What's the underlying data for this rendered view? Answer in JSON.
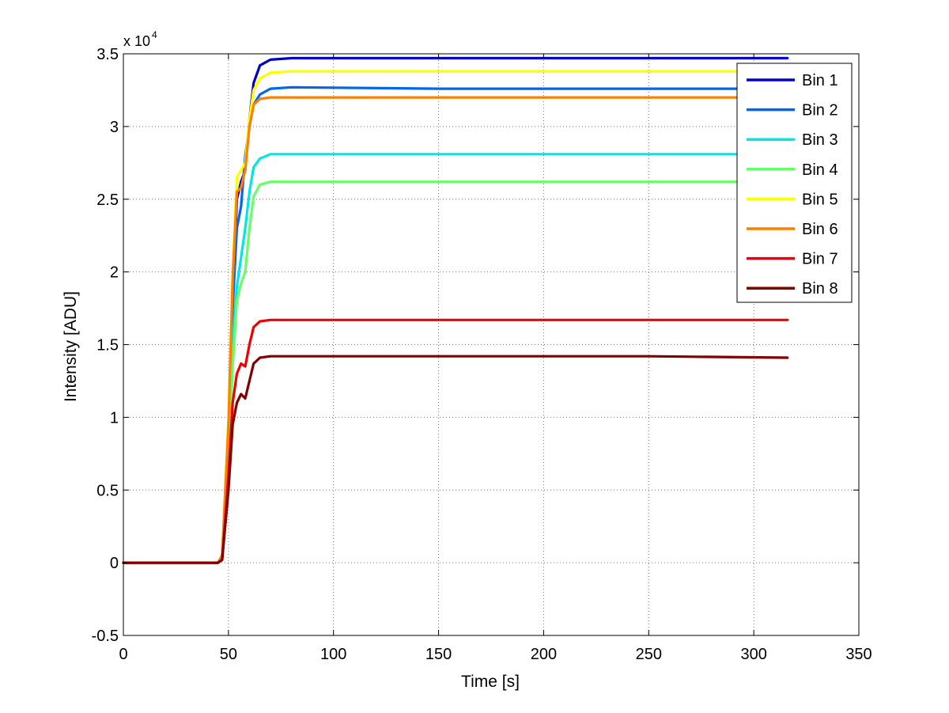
{
  "chart_data": {
    "type": "line",
    "xlabel": "Time [s]",
    "ylabel": "Intensity [ADU]",
    "xlim": [
      0,
      350
    ],
    "ylim": [
      -0.5,
      3.5
    ],
    "y_multiplier_label": "x 10",
    "y_multiplier_exponent": "4",
    "xticks": [
      0,
      50,
      100,
      150,
      200,
      250,
      300,
      350
    ],
    "xtick_labels": [
      "0",
      "50",
      "100",
      "150",
      "200",
      "250",
      "300",
      "350"
    ],
    "yticks": [
      -0.5,
      0,
      0.5,
      1,
      1.5,
      2,
      2.5,
      3,
      3.5
    ],
    "ytick_labels": [
      "-0.5",
      "0",
      "0.5",
      "1",
      "1.5",
      "2",
      "2.5",
      "3",
      "3.5"
    ],
    "grid": true,
    "legend_position": "top-right",
    "series": [
      {
        "name": "Bin 1",
        "color": "#0000cc",
        "points": [
          [
            0,
            0
          ],
          [
            45,
            0
          ],
          [
            47,
            0.05
          ],
          [
            50,
            0.9
          ],
          [
            52,
            1.8
          ],
          [
            54,
            2.5
          ],
          [
            56,
            2.62
          ],
          [
            58,
            2.7
          ],
          [
            60,
            3.05
          ],
          [
            62,
            3.3
          ],
          [
            65,
            3.42
          ],
          [
            70,
            3.46
          ],
          [
            80,
            3.47
          ],
          [
            150,
            3.47
          ],
          [
            250,
            3.47
          ],
          [
            316,
            3.47
          ]
        ]
      },
      {
        "name": "Bin 2",
        "color": "#0066ee",
        "points": [
          [
            0,
            0
          ],
          [
            45,
            0
          ],
          [
            47,
            0.04
          ],
          [
            50,
            0.85
          ],
          [
            52,
            1.75
          ],
          [
            54,
            2.3
          ],
          [
            56,
            2.45
          ],
          [
            58,
            2.8
          ],
          [
            60,
            3.0
          ],
          [
            62,
            3.15
          ],
          [
            65,
            3.22
          ],
          [
            70,
            3.26
          ],
          [
            80,
            3.27
          ],
          [
            150,
            3.26
          ],
          [
            250,
            3.26
          ],
          [
            316,
            3.26
          ]
        ]
      },
      {
        "name": "Bin 3",
        "color": "#00e6e6",
        "points": [
          [
            0,
            0
          ],
          [
            45,
            0
          ],
          [
            47,
            0.03
          ],
          [
            50,
            0.8
          ],
          [
            52,
            1.5
          ],
          [
            54,
            1.9
          ],
          [
            56,
            2.1
          ],
          [
            58,
            2.3
          ],
          [
            60,
            2.55
          ],
          [
            62,
            2.72
          ],
          [
            65,
            2.78
          ],
          [
            70,
            2.81
          ],
          [
            80,
            2.81
          ],
          [
            150,
            2.81
          ],
          [
            250,
            2.81
          ],
          [
            316,
            2.81
          ]
        ]
      },
      {
        "name": "Bin 4",
        "color": "#66ff66",
        "points": [
          [
            0,
            0
          ],
          [
            45,
            0
          ],
          [
            47,
            0.03
          ],
          [
            50,
            0.75
          ],
          [
            52,
            1.35
          ],
          [
            54,
            1.8
          ],
          [
            56,
            1.92
          ],
          [
            58,
            2.0
          ],
          [
            60,
            2.3
          ],
          [
            62,
            2.52
          ],
          [
            65,
            2.6
          ],
          [
            70,
            2.62
          ],
          [
            80,
            2.62
          ],
          [
            150,
            2.62
          ],
          [
            250,
            2.62
          ],
          [
            316,
            2.62
          ]
        ]
      },
      {
        "name": "Bin 5",
        "color": "#ffff00",
        "points": [
          [
            0,
            0
          ],
          [
            45,
            0
          ],
          [
            47,
            0.05
          ],
          [
            50,
            1.0
          ],
          [
            52,
            2.0
          ],
          [
            54,
            2.65
          ],
          [
            56,
            2.7
          ],
          [
            58,
            2.75
          ],
          [
            60,
            3.05
          ],
          [
            62,
            3.25
          ],
          [
            65,
            3.33
          ],
          [
            70,
            3.37
          ],
          [
            80,
            3.38
          ],
          [
            150,
            3.38
          ],
          [
            250,
            3.38
          ],
          [
            316,
            3.38
          ]
        ]
      },
      {
        "name": "Bin 6",
        "color": "#ff8000",
        "points": [
          [
            0,
            0
          ],
          [
            45,
            0
          ],
          [
            47,
            0.05
          ],
          [
            50,
            0.95
          ],
          [
            52,
            1.95
          ],
          [
            54,
            2.55
          ],
          [
            56,
            2.58
          ],
          [
            58,
            2.7
          ],
          [
            60,
            3.0
          ],
          [
            62,
            3.15
          ],
          [
            65,
            3.19
          ],
          [
            70,
            3.2
          ],
          [
            80,
            3.2
          ],
          [
            150,
            3.2
          ],
          [
            250,
            3.2
          ],
          [
            316,
            3.2
          ]
        ]
      },
      {
        "name": "Bin 7",
        "color": "#ee0000",
        "points": [
          [
            0,
            0
          ],
          [
            45,
            0
          ],
          [
            47,
            0.02
          ],
          [
            50,
            0.6
          ],
          [
            52,
            1.1
          ],
          [
            54,
            1.3
          ],
          [
            56,
            1.37
          ],
          [
            58,
            1.35
          ],
          [
            60,
            1.5
          ],
          [
            62,
            1.62
          ],
          [
            65,
            1.66
          ],
          [
            70,
            1.67
          ],
          [
            80,
            1.67
          ],
          [
            150,
            1.67
          ],
          [
            250,
            1.67
          ],
          [
            316,
            1.67
          ]
        ]
      },
      {
        "name": "Bin 8",
        "color": "#800000",
        "points": [
          [
            0,
            0
          ],
          [
            45,
            0
          ],
          [
            47,
            0.02
          ],
          [
            50,
            0.5
          ],
          [
            52,
            0.95
          ],
          [
            54,
            1.1
          ],
          [
            56,
            1.16
          ],
          [
            58,
            1.13
          ],
          [
            60,
            1.25
          ],
          [
            62,
            1.37
          ],
          [
            65,
            1.41
          ],
          [
            70,
            1.42
          ],
          [
            80,
            1.42
          ],
          [
            150,
            1.42
          ],
          [
            250,
            1.42
          ],
          [
            316,
            1.41
          ]
        ]
      }
    ]
  }
}
